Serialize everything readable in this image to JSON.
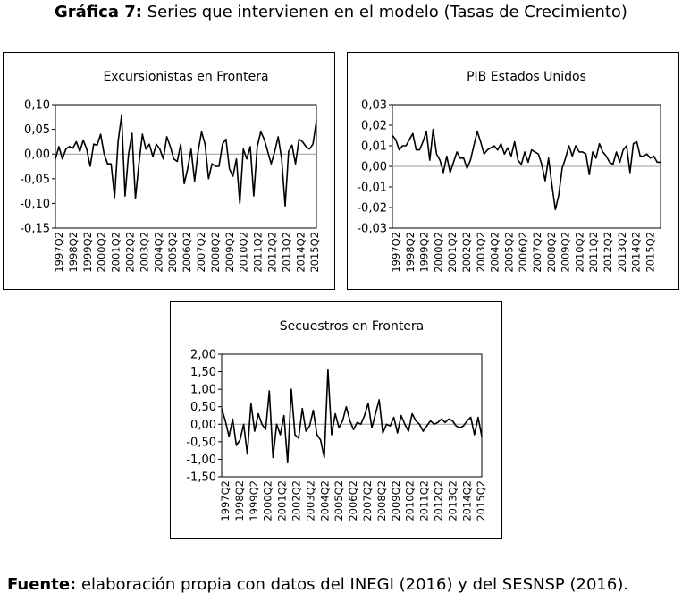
{
  "figure": {
    "label": "Gráfica 7:",
    "title": "Series que intervienen en el modelo (Tasas de Crecimiento)"
  },
  "footer": {
    "label": "Fuente:",
    "text": "elaboración propia con datos del INEGI (2016) y del SESNSP (2016)."
  },
  "chart_data": [
    {
      "type": "line",
      "title": "Excursionistas en Frontera",
      "xlabel": "",
      "ylabel": "",
      "ylim": [
        -0.15,
        0.1
      ],
      "yticks": [
        0.1,
        0.05,
        0.0,
        -0.05,
        -0.1,
        -0.15
      ],
      "ytick_labels": [
        "0,10",
        "0,05",
        "0,00",
        "-0,05",
        "-0,10",
        "-0,15"
      ],
      "xtick_labels": [
        "1997Q2",
        "1998Q2",
        "1999Q2",
        "2000Q2",
        "2001Q2",
        "2002Q2",
        "2003Q2",
        "2004Q2",
        "2005Q2",
        "2006Q2",
        "2007Q2",
        "2008Q2",
        "2009Q2",
        "2010Q2",
        "2011Q2",
        "2012Q2",
        "2013Q2",
        "2014Q2",
        "2015Q2"
      ],
      "zero_line": true,
      "grid": false,
      "series": [
        {
          "values": [
            -0.01,
            0.015,
            -0.01,
            0.01,
            0.015,
            0.012,
            0.025,
            0.005,
            0.028,
            0.01,
            -0.025,
            0.02,
            0.018,
            0.04,
            0.0,
            -0.02,
            -0.02,
            -0.088,
            0.025,
            0.078,
            -0.085,
            0.0,
            0.042,
            -0.09,
            -0.02,
            0.04,
            0.01,
            0.02,
            -0.005,
            0.02,
            0.01,
            -0.01,
            0.035,
            0.015,
            -0.01,
            -0.015,
            0.02,
            -0.06,
            -0.03,
            0.01,
            -0.055,
            0.005,
            0.045,
            0.02,
            -0.05,
            -0.02,
            -0.025,
            -0.025,
            0.02,
            0.03,
            -0.03,
            -0.045,
            -0.01,
            -0.1,
            0.01,
            -0.01,
            0.015,
            -0.085,
            0.015,
            0.045,
            0.03,
            0.005,
            -0.02,
            0.005,
            0.035,
            -0.01,
            -0.105,
            0.005,
            0.018,
            -0.02,
            0.03,
            0.025,
            0.015,
            0.01,
            0.02,
            0.068
          ]
        }
      ]
    },
    {
      "type": "line",
      "title": "PIB Estados Unidos",
      "xlabel": "",
      "ylabel": "",
      "ylim": [
        -0.03,
        0.03
      ],
      "yticks": [
        0.03,
        0.02,
        0.01,
        0.0,
        -0.01,
        -0.02,
        -0.03
      ],
      "ytick_labels": [
        "0,03",
        "0,02",
        "0,01",
        "0,00",
        "-0,01",
        "-0,02",
        "-0,03"
      ],
      "xtick_labels": [
        "1997Q2",
        "1998Q2",
        "1999Q2",
        "2000Q2",
        "2001Q2",
        "2002Q2",
        "2003Q2",
        "2004Q2",
        "2005Q2",
        "2006Q2",
        "2007Q2",
        "2008Q2",
        "2009Q2",
        "2010Q2",
        "2011Q2",
        "2012Q2",
        "2013Q2",
        "2014Q2",
        "2015Q2"
      ],
      "zero_line": true,
      "grid": false,
      "series": [
        {
          "values": [
            0.015,
            0.013,
            0.008,
            0.01,
            0.01,
            0.013,
            0.016,
            0.008,
            0.008,
            0.012,
            0.017,
            0.003,
            0.018,
            0.006,
            0.003,
            -0.003,
            0.005,
            -0.003,
            0.002,
            0.007,
            0.004,
            0.004,
            -0.001,
            0.003,
            0.01,
            0.017,
            0.012,
            0.006,
            0.008,
            0.009,
            0.01,
            0.008,
            0.011,
            0.006,
            0.009,
            0.005,
            0.012,
            0.003,
            0.001,
            0.007,
            0.002,
            0.008,
            0.007,
            0.006,
            0.001,
            -0.007,
            0.004,
            -0.009,
            -0.021,
            -0.014,
            -0.001,
            0.004,
            0.01,
            0.005,
            0.01,
            0.007,
            0.007,
            0.006,
            -0.004,
            0.007,
            0.004,
            0.011,
            0.007,
            0.005,
            0.002,
            0.001,
            0.007,
            0.002,
            0.008,
            0.01,
            -0.003,
            0.011,
            0.012,
            0.005,
            0.005,
            0.006,
            0.004,
            0.005,
            0.002,
            0.002
          ]
        }
      ]
    },
    {
      "type": "line",
      "title": "Secuestros en Frontera",
      "xlabel": "",
      "ylabel": "",
      "ylim": [
        -1.5,
        2.0
      ],
      "yticks": [
        2.0,
        1.5,
        1.0,
        0.5,
        0.0,
        -0.5,
        -1.0,
        -1.5
      ],
      "ytick_labels": [
        "2,00",
        "1,50",
        "1,00",
        "0,50",
        "0,00",
        "-0,50",
        "-1,00",
        "-1,50"
      ],
      "xtick_labels": [
        "1997Q2",
        "1998Q2",
        "1999Q2",
        "2000Q2",
        "2001Q2",
        "2002Q2",
        "2003Q2",
        "2004Q2",
        "2005Q2",
        "2006Q2",
        "2007Q2",
        "2008Q2",
        "2009Q2",
        "2010Q2",
        "2011Q2",
        "2012Q2",
        "2013Q2",
        "2014Q2",
        "2015Q2"
      ],
      "zero_line": true,
      "grid": false,
      "series": [
        {
          "values": [
            0.45,
            0.1,
            -0.35,
            0.15,
            -0.6,
            -0.45,
            0.0,
            -0.85,
            0.6,
            -0.2,
            0.3,
            0.0,
            -0.15,
            0.95,
            -0.95,
            0.0,
            -0.3,
            0.25,
            -1.1,
            1.0,
            -0.3,
            -0.4,
            0.45,
            -0.2,
            -0.05,
            0.4,
            -0.3,
            -0.45,
            -0.95,
            1.55,
            -0.3,
            0.3,
            -0.1,
            0.1,
            0.5,
            0.1,
            -0.15,
            0.05,
            0.0,
            0.25,
            0.6,
            -0.1,
            0.3,
            0.7,
            -0.25,
            0.0,
            -0.05,
            0.2,
            -0.25,
            0.25,
            0.0,
            -0.2,
            0.3,
            0.1,
            0.0,
            -0.2,
            -0.05,
            0.1,
            0.0,
            0.05,
            0.15,
            0.05,
            0.15,
            0.1,
            -0.05,
            -0.1,
            -0.05,
            0.1,
            0.2,
            -0.3,
            0.2,
            -0.35
          ]
        }
      ]
    }
  ]
}
